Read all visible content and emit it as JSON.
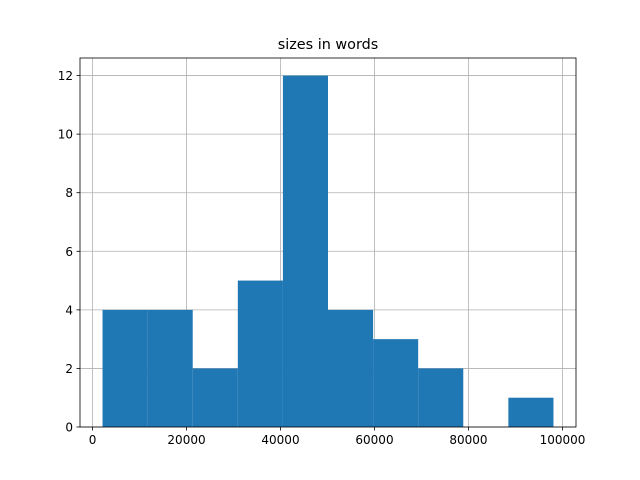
{
  "chart_data": {
    "type": "histogram",
    "title": "sizes in words",
    "bins": [
      2130,
      11725,
      21320,
      30915,
      40510,
      50105,
      59700,
      69295,
      78890,
      88485,
      98080
    ],
    "values": [
      4,
      4,
      2,
      5,
      12,
      4,
      3,
      2,
      0,
      1
    ],
    "color": "#1f77b4",
    "xlim": [
      -2667,
      102877
    ],
    "xticks": [
      0,
      20000,
      40000,
      60000,
      80000,
      100000
    ],
    "ylim": [
      0,
      12.6
    ],
    "yticks": [
      0,
      2,
      4,
      6,
      8,
      10,
      12
    ],
    "grid": true
  }
}
